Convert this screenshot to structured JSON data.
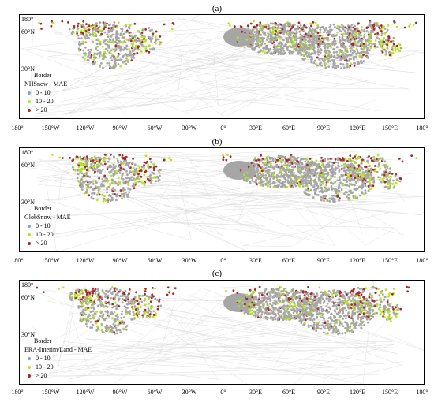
{
  "figure": {
    "x_ticks": [
      "180°",
      "150°W",
      "120°W",
      "90°W",
      "60°W",
      "30°W",
      "0°",
      "30°E",
      "60°E",
      "90°E",
      "120°E",
      "150°E",
      "180°"
    ],
    "y_ticks": [
      "180°",
      "60°N",
      "30°N"
    ],
    "legend_items": [
      {
        "label": "0 - 10",
        "color": "#7fa8c9"
      },
      {
        "label": "10 - 20",
        "color": "#b5e61d"
      },
      {
        "label": "> 20",
        "color": "#a52a2a"
      }
    ],
    "colors": {
      "border": "#d9d9d9",
      "station_gray": "#a6a6a6",
      "land_gray": "#9a9a9a"
    }
  },
  "panels": [
    {
      "label": "(a)",
      "legend_border": "Border",
      "legend_title": "NHSnow - MAE"
    },
    {
      "label": "(b)",
      "legend_border": "Border",
      "legend_title": "GlobSnow - MAE"
    },
    {
      "label": "(c)",
      "legend_border": "Border",
      "legend_title": "ERA-Interim/Land - MAE"
    }
  ]
}
